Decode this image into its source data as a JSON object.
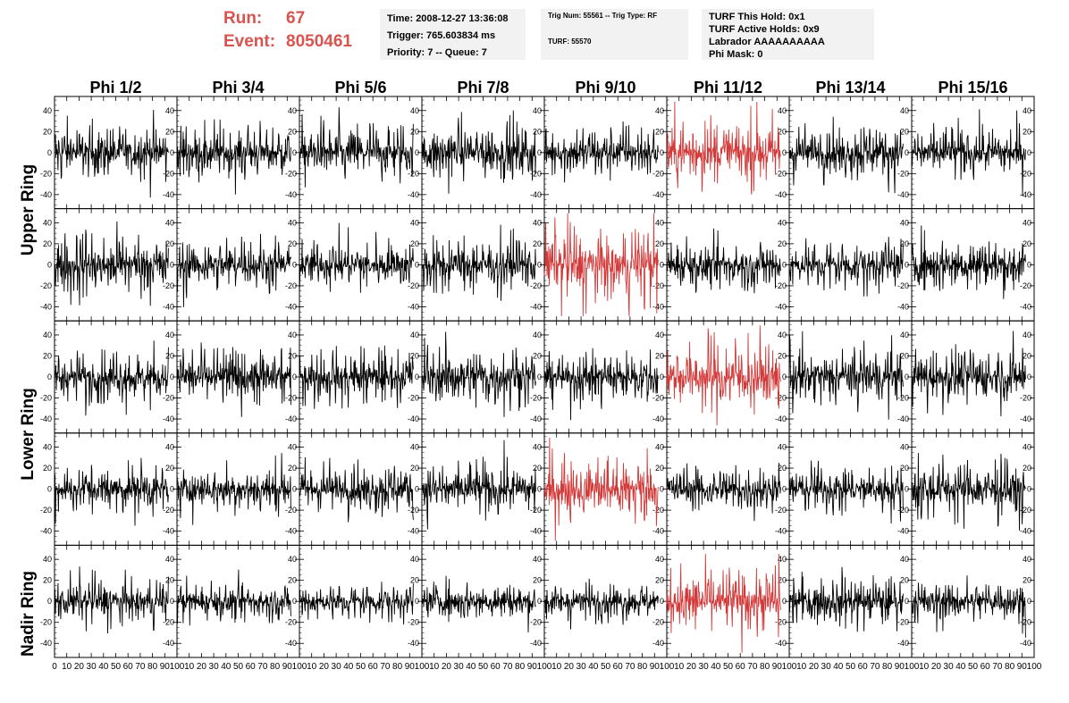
{
  "header": {
    "run_label": "Run:",
    "run_value": "67",
    "event_label": "Event:",
    "event_value": "8050461"
  },
  "info_left": {
    "time": "Time: 2008-12-27 13:36:08",
    "trigger": "Trigger: 765.603834 ms",
    "priority": "Priority: 7 -- Queue: 7"
  },
  "info_mid": {
    "trig": "Trig Num: 55561 -- Trig Type: RF",
    "turf": "TURF: 55570"
  },
  "info_right": {
    "hold": "TURF This Hold: 0x1",
    "active": "TURF Active Holds: 0x9",
    "labrador": "Labrador AAAAAAAAAA",
    "mask": "Phi Mask: 0"
  },
  "chart_data": {
    "type": "line",
    "columns": [
      "Phi 1/2",
      "Phi 3/4",
      "Phi 5/6",
      "Phi 7/8",
      "Phi 9/10",
      "Phi 11/12",
      "Phi 13/14",
      "Phi 15/16"
    ],
    "rows": [
      "Upper Ring",
      "Upper Ring",
      "Lower Ring",
      "Lower Ring",
      "Nadir Ring"
    ],
    "row_labels": [
      "Upper Ring",
      "Lower Ring",
      "Nadir Ring"
    ],
    "ylim": [
      -50,
      50
    ],
    "yticks": [
      -40,
      -20,
      0,
      20,
      40
    ],
    "xlim": [
      0,
      100
    ],
    "xticks_first": [
      "0",
      "10",
      "20",
      "30",
      "40",
      "50",
      "60",
      "70",
      "80",
      "90",
      "100"
    ],
    "xticks_mid": [
      "10",
      "20",
      "30",
      "40",
      "50",
      "60",
      "70",
      "80",
      "90",
      "100"
    ],
    "samples_per_trace": 260,
    "highlight_color": "#d23a3a",
    "trace_color": "#000000",
    "highlighted_cells": [
      [
        0,
        5
      ],
      [
        1,
        4
      ],
      [
        2,
        5
      ],
      [
        3,
        4
      ],
      [
        4,
        5
      ]
    ],
    "amplitude_grid": [
      [
        14,
        14,
        15,
        16,
        13,
        18,
        14,
        13
      ],
      [
        17,
        14,
        13,
        15,
        20,
        13,
        13,
        14
      ],
      [
        14,
        15,
        14,
        16,
        13,
        19,
        16,
        15
      ],
      [
        13,
        12,
        13,
        14,
        18,
        12,
        13,
        16
      ],
      [
        12,
        10,
        10,
        10,
        10,
        17,
        13,
        11
      ]
    ]
  }
}
